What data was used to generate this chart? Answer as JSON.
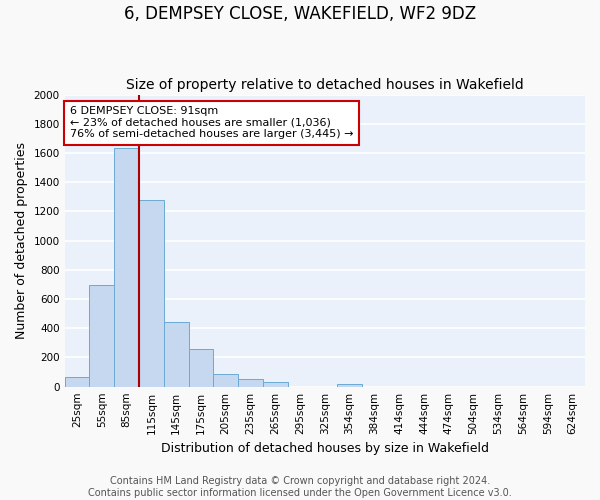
{
  "title": "6, DEMPSEY CLOSE, WAKEFIELD, WF2 9DZ",
  "subtitle": "Size of property relative to detached houses in Wakefield",
  "xlabel": "Distribution of detached houses by size in Wakefield",
  "ylabel": "Number of detached properties",
  "bar_labels": [
    "25sqm",
    "55sqm",
    "85sqm",
    "115sqm",
    "145sqm",
    "175sqm",
    "205sqm",
    "235sqm",
    "265sqm",
    "295sqm",
    "325sqm",
    "354sqm",
    "384sqm",
    "414sqm",
    "444sqm",
    "474sqm",
    "504sqm",
    "534sqm",
    "564sqm",
    "594sqm",
    "624sqm"
  ],
  "bar_values": [
    65,
    695,
    1635,
    1280,
    440,
    255,
    90,
    50,
    30,
    0,
    0,
    15,
    0,
    0,
    0,
    0,
    0,
    0,
    0,
    0,
    0
  ],
  "bar_color": "#c5d8f0",
  "bar_edge_color": "#6aaad4",
  "fig_background_color": "#f9f9f9",
  "plot_background_color": "#eaf1fb",
  "grid_color": "#ffffff",
  "ylim": [
    0,
    2000
  ],
  "yticks": [
    0,
    200,
    400,
    600,
    800,
    1000,
    1200,
    1400,
    1600,
    1800,
    2000
  ],
  "redline_bar_index": 2,
  "annotation_title": "6 DEMPSEY CLOSE: 91sqm",
  "annotation_line1": "← 23% of detached houses are smaller (1,036)",
  "annotation_line2": "76% of semi-detached houses are larger (3,445) →",
  "annotation_box_color": "#ffffff",
  "annotation_box_edge": "#cc0000",
  "footer1": "Contains HM Land Registry data © Crown copyright and database right 2024.",
  "footer2": "Contains public sector information licensed under the Open Government Licence v3.0.",
  "title_fontsize": 12,
  "subtitle_fontsize": 10,
  "axis_label_fontsize": 9,
  "tick_fontsize": 7.5,
  "annotation_fontsize": 8,
  "footer_fontsize": 7
}
